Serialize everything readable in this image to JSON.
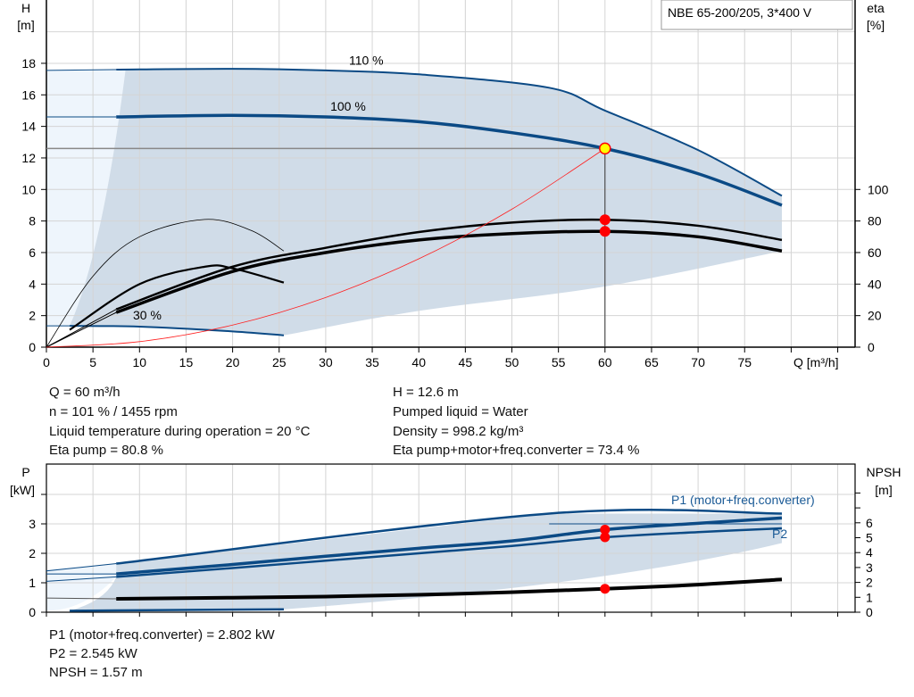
{
  "chart_data": [
    {
      "type": "line",
      "title": "NBE 65-200/205, 3*400 V",
      "xlabel": "Q [m³/h]",
      "ylabel_left": [
        "H",
        "[m]"
      ],
      "ylabel_right": [
        "eta",
        "[%]"
      ],
      "xlim": [
        0,
        86
      ],
      "ylim": [
        0,
        20
      ],
      "y2lim": [
        0,
        200
      ],
      "xticks": [
        0,
        5,
        10,
        15,
        20,
        25,
        30,
        35,
        40,
        45,
        50,
        55,
        60,
        65,
        70,
        75
      ],
      "yticks": [
        0,
        2,
        4,
        6,
        8,
        10,
        12,
        14,
        16,
        18
      ],
      "y2ticks": [
        0,
        20,
        40,
        60,
        80,
        100
      ],
      "grid": true,
      "series": [
        {
          "name": "110 %",
          "axis": "H",
          "values": [
            [
              7.5,
              17.6
            ],
            [
              20,
              17.65
            ],
            [
              30,
              17.55
            ],
            [
              40,
              17.3
            ],
            [
              54,
              16.45
            ],
            [
              60,
              15.0
            ],
            [
              70,
              12.5
            ],
            [
              79,
              9.6
            ]
          ]
        },
        {
          "name": "100 %",
          "axis": "H",
          "values": [
            [
              7.5,
              14.6
            ],
            [
              20,
              14.7
            ],
            [
              30,
              14.6
            ],
            [
              40,
              14.3
            ],
            [
              50,
              13.6
            ],
            [
              60,
              12.6
            ],
            [
              70,
              11.0
            ],
            [
              79,
              9.0
            ]
          ]
        },
        {
          "name": "30 %",
          "axis": "H",
          "values": [
            [
              2.5,
              1.35
            ],
            [
              10,
              1.3
            ],
            [
              20,
              1.0
            ],
            [
              25.5,
              0.75
            ]
          ]
        },
        {
          "axis": "eta",
          "values": [
            [
              7.5,
              24
            ],
            [
              20,
              51
            ],
            [
              30,
              63
            ],
            [
              40,
              73
            ],
            [
              50,
              79
            ],
            [
              60,
              80.8
            ],
            [
              70,
              77
            ],
            [
              79,
              68
            ]
          ]
        },
        {
          "axis": "eta",
          "values": [
            [
              7.5,
              22
            ],
            [
              20,
              48
            ],
            [
              30,
              60
            ],
            [
              40,
              68
            ],
            [
              50,
              72
            ],
            [
              60,
              73.4
            ],
            [
              70,
              70
            ],
            [
              79,
              61
            ]
          ]
        },
        {
          "axis": "eta",
          "values": [
            [
              0,
              0
            ],
            [
              5,
              45
            ],
            [
              10,
              70
            ],
            [
              17,
              81
            ],
            [
              22,
              74
            ],
            [
              25.5,
              61
            ]
          ]
        },
        {
          "axis": "eta",
          "values": [
            [
              2.5,
              11
            ],
            [
              10,
              40
            ],
            [
              17,
              51
            ],
            [
              20,
              50
            ],
            [
              25.5,
              41
            ]
          ]
        },
        {
          "axis": "H",
          "system_curve": true,
          "values": [
            [
              0,
              0
            ],
            [
              10,
              0.35
            ],
            [
              20,
              1.4
            ],
            [
              30,
              3.15
            ],
            [
              40,
              5.6
            ],
            [
              50,
              8.75
            ],
            [
              60,
              12.6
            ]
          ]
        }
      ],
      "duty_point": {
        "Q": 60,
        "H": 12.6,
        "eta_pump": 80.8,
        "eta_total": 73.4
      },
      "colors": {
        "curve": "#0b4a85",
        "eta": "#000000",
        "system": "#ff2020",
        "area": "#d0dce8",
        "area_light": "#eef5fc",
        "point": "#ff0000",
        "duty": "#ffff00"
      }
    },
    {
      "type": "line",
      "ylabel_left": [
        "P",
        "[kW]"
      ],
      "ylabel_right": [
        "NPSH",
        "[m]"
      ],
      "ylim": [
        0,
        5
      ],
      "y2lim": [
        0,
        10
      ],
      "yticks": [
        0,
        1,
        2,
        3
      ],
      "y2ticks": [
        0,
        1,
        2,
        3,
        4,
        5,
        6
      ],
      "series": [
        {
          "name": "P1 (motor+freq.converter)",
          "axis": "P",
          "values": [
            [
              7.5,
              1.3
            ],
            [
              20,
              1.62
            ],
            [
              30,
              1.9
            ],
            [
              40,
              2.17
            ],
            [
              50,
              2.42
            ],
            [
              60,
              2.802
            ],
            [
              70,
              3.02
            ],
            [
              79,
              3.2
            ]
          ]
        },
        {
          "name": "P2",
          "axis": "P",
          "values": [
            [
              7.5,
              1.2
            ],
            [
              20,
              1.5
            ],
            [
              30,
              1.75
            ],
            [
              40,
              2.0
            ],
            [
              50,
              2.25
            ],
            [
              60,
              2.545
            ],
            [
              70,
              2.72
            ],
            [
              79,
              2.85
            ]
          ]
        },
        {
          "axis": "P",
          "values": [
            [
              7.5,
              1.65
            ],
            [
              54,
              3.35
            ],
            [
              79,
              3.35
            ]
          ]
        },
        {
          "axis": "P",
          "values": [
            [
              2.5,
              0.05
            ],
            [
              25.5,
              0.1
            ]
          ]
        },
        {
          "axis": "NPSH",
          "values": [
            [
              7.5,
              0.9
            ],
            [
              30,
              1.05
            ],
            [
              45,
              1.25
            ],
            [
              60,
              1.57
            ],
            [
              70,
              1.85
            ],
            [
              79,
              2.2
            ]
          ]
        }
      ],
      "duty_point": {
        "Q": 60,
        "P1": 2.802,
        "P2": 2.545,
        "NPSH": 1.57
      }
    }
  ],
  "info": {
    "left": [
      "Q = 60 m³/h",
      "n = 101 % / 1455 rpm",
      "Liquid temperature during operation = 20 °C",
      "Eta pump = 80.8 %"
    ],
    "right": [
      "H = 12.6 m",
      "Pumped liquid = Water",
      "Density = 998.2 kg/m³",
      "Eta pump+motor+freq.converter = 73.4 %"
    ],
    "bottom": [
      "P1 (motor+freq.converter) = 2.802 kW",
      "P2 = 2.545 kW",
      "NPSH = 1.57 m"
    ]
  }
}
